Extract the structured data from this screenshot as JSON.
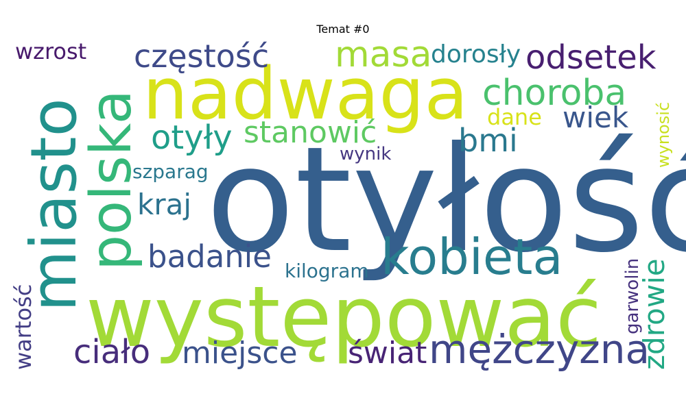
{
  "chart_data": {
    "type": "wordcloud",
    "title": "Temat #0",
    "colormap": "viridis",
    "background": "#ffffff",
    "words": [
      {
        "text": "otyłość",
        "weight": 1.0,
        "color": "#355f8d",
        "vertical": false
      },
      {
        "text": "występować",
        "weight": 0.85,
        "color": "#a2da37",
        "vertical": false
      },
      {
        "text": "nadwaga",
        "weight": 0.72,
        "color": "#d8e219",
        "vertical": false
      },
      {
        "text": "miasto",
        "weight": 0.55,
        "color": "#21918c",
        "vertical": true
      },
      {
        "text": "polska",
        "weight": 0.48,
        "color": "#35b779",
        "vertical": true
      },
      {
        "text": "kobieta",
        "weight": 0.42,
        "color": "#287d8e",
        "vertical": false
      },
      {
        "text": "mężczyzna",
        "weight": 0.32,
        "color": "#404688",
        "vertical": false
      },
      {
        "text": "masa",
        "weight": 0.28,
        "color": "#a2da37",
        "vertical": false
      },
      {
        "text": "choroba",
        "weight": 0.28,
        "color": "#4ac16d",
        "vertical": false
      },
      {
        "text": "odsetek",
        "weight": 0.26,
        "color": "#481f70",
        "vertical": false
      },
      {
        "text": "częstość",
        "weight": 0.25,
        "color": "#3e4a89",
        "vertical": false
      },
      {
        "text": "otyły",
        "weight": 0.25,
        "color": "#1f9e89",
        "vertical": false
      },
      {
        "text": "ciało",
        "weight": 0.25,
        "color": "#472d7b",
        "vertical": false
      },
      {
        "text": "badanie",
        "weight": 0.23,
        "color": "#3b528b",
        "vertical": false
      },
      {
        "text": "stanowić",
        "weight": 0.22,
        "color": "#5ec962",
        "vertical": false
      },
      {
        "text": "zdrowie",
        "weight": 0.22,
        "color": "#22a884",
        "vertical": true
      },
      {
        "text": "świat",
        "weight": 0.22,
        "color": "#482475",
        "vertical": false
      },
      {
        "text": "miejsce",
        "weight": 0.22,
        "color": "#3b528b",
        "vertical": false
      },
      {
        "text": "bmi",
        "weight": 0.22,
        "color": "#2a788e",
        "vertical": false
      },
      {
        "text": "wiek",
        "weight": 0.2,
        "color": "#39568c",
        "vertical": false
      },
      {
        "text": "kraj",
        "weight": 0.2,
        "color": "#2c728e",
        "vertical": false
      },
      {
        "text": "dorosły",
        "weight": 0.17,
        "color": "#26828e",
        "vertical": false
      },
      {
        "text": "wzrost",
        "weight": 0.16,
        "color": "#481a6c",
        "vertical": false
      },
      {
        "text": "wartość",
        "weight": 0.16,
        "color": "#433e85",
        "vertical": true
      },
      {
        "text": "dane",
        "weight": 0.15,
        "color": "#d8e219",
        "vertical": false
      },
      {
        "text": "kilogram",
        "weight": 0.13,
        "color": "#2c728e",
        "vertical": false
      },
      {
        "text": "szparag",
        "weight": 0.13,
        "color": "#2a788e",
        "vertical": false
      },
      {
        "text": "garwolin",
        "weight": 0.12,
        "color": "#46327e",
        "vertical": true
      },
      {
        "text": "wynik",
        "weight": 0.12,
        "color": "#453781",
        "vertical": false
      },
      {
        "text": "wynosić",
        "weight": 0.1,
        "color": "#c8e020",
        "vertical": true
      }
    ]
  }
}
